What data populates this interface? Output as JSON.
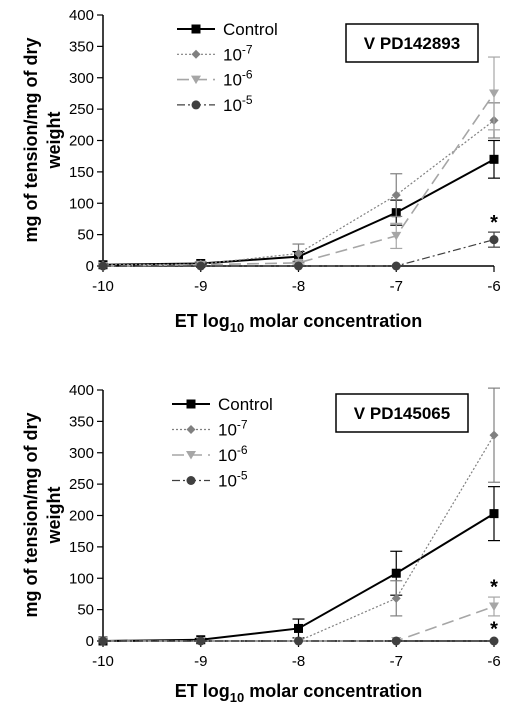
{
  "chart_data": [
    {
      "type": "line",
      "title": "",
      "box_label": "V PD142893",
      "xlabel": {
        "prefix": "ET log",
        "subscript": "10",
        "suffix": " molar concentration"
      },
      "ylabel": [
        "mg of tension/mg of dry",
        "weight"
      ],
      "x_ticks": [
        "-10",
        "-9",
        "-8",
        "-7",
        "-6"
      ],
      "y_ticks": [
        "0",
        "50",
        "100",
        "150",
        "200",
        "250",
        "300",
        "350",
        "400"
      ],
      "xlim": [
        -10,
        -6
      ],
      "ylim": [
        0,
        400
      ],
      "legend_placement": "top-left",
      "series": [
        {
          "name": "Control",
          "legend_base": "Control",
          "legend_exp": "",
          "marker": "square",
          "color": "#000000",
          "dash": "",
          "stroke_width": 2,
          "x": [
            -10,
            -9,
            -8,
            -7,
            -6
          ],
          "y": [
            2,
            4,
            15,
            85,
            170
          ],
          "err": [
            0,
            2,
            8,
            20,
            30
          ]
        },
        {
          "name": "10-7",
          "legend_base": "10",
          "legend_exp": "-7",
          "marker": "diamond",
          "color": "#808080",
          "dash": "2,2",
          "stroke_width": 1.2,
          "x": [
            -10,
            -9,
            -8,
            -7,
            -6
          ],
          "y": [
            2,
            3,
            20,
            113,
            232
          ],
          "err": [
            0,
            2,
            15,
            34,
            28
          ]
        },
        {
          "name": "10-6",
          "legend_base": "10",
          "legend_exp": "-6",
          "marker": "triangle-down",
          "color": "#a6a6a6",
          "dash": "12,6",
          "stroke_width": 1.6,
          "x": [
            -10,
            -9,
            -8,
            -7,
            -6
          ],
          "y": [
            0,
            2,
            5,
            48,
            275
          ],
          "err": [
            0,
            0,
            3,
            20,
            58
          ]
        },
        {
          "name": "10-5",
          "legend_base": "10",
          "legend_exp": "-5",
          "marker": "circle",
          "color": "#404040",
          "dash": "8,3,2,3",
          "stroke_width": 1.2,
          "x": [
            -10,
            -9,
            -8,
            -7,
            -6
          ],
          "y": [
            0,
            0,
            0,
            0,
            42
          ],
          "err": [
            0,
            0,
            0,
            0,
            12
          ]
        }
      ],
      "annotations": [
        {
          "text": "*",
          "x": -6,
          "y": 70
        }
      ]
    },
    {
      "type": "line",
      "title": "",
      "box_label": "V PD145065",
      "xlabel": {
        "prefix": "ET log",
        "subscript": "10",
        "suffix": " molar concentration"
      },
      "ylabel": [
        "mg of tension/mg of dry",
        "weight"
      ],
      "x_ticks": [
        "-10",
        "-9",
        "-8",
        "-7",
        "-6"
      ],
      "y_ticks": [
        "0",
        "50",
        "100",
        "150",
        "200",
        "250",
        "300",
        "350",
        "400"
      ],
      "xlim": [
        -10,
        -6
      ],
      "ylim": [
        0,
        400
      ],
      "legend_placement": "top-left",
      "series": [
        {
          "name": "Control",
          "legend_base": "Control",
          "legend_exp": "",
          "marker": "square",
          "color": "#000000",
          "dash": "",
          "stroke_width": 2,
          "x": [
            -10,
            -9,
            -8,
            -7,
            -6
          ],
          "y": [
            0,
            2,
            20,
            108,
            203
          ],
          "err": [
            0,
            2,
            15,
            35,
            43
          ]
        },
        {
          "name": "10-7",
          "legend_base": "10",
          "legend_exp": "-7",
          "marker": "diamond",
          "color": "#808080",
          "dash": "2,2",
          "stroke_width": 1.2,
          "x": [
            -10,
            -9,
            -8,
            -7,
            -6
          ],
          "y": [
            0,
            0,
            0,
            68,
            328
          ],
          "err": [
            0,
            0,
            0,
            28,
            75
          ]
        },
        {
          "name": "10-6",
          "legend_base": "10",
          "legend_exp": "-6",
          "marker": "triangle-down",
          "color": "#a6a6a6",
          "dash": "12,6",
          "stroke_width": 1.6,
          "x": [
            -10,
            -9,
            -8,
            -7,
            -6
          ],
          "y": [
            0,
            0,
            0,
            0,
            55
          ],
          "err": [
            0,
            0,
            0,
            0,
            15
          ]
        },
        {
          "name": "10-5",
          "legend_base": "10",
          "legend_exp": "-5",
          "marker": "circle",
          "color": "#404040",
          "dash": "8,3,2,3",
          "stroke_width": 1.2,
          "x": [
            -10,
            -9,
            -8,
            -7,
            -6
          ],
          "y": [
            0,
            0,
            0,
            0,
            0
          ],
          "err": [
            0,
            0,
            0,
            0,
            0
          ]
        }
      ],
      "annotations": [
        {
          "text": "*",
          "x": -6,
          "y": 87
        },
        {
          "text": "*",
          "x": -6,
          "y": 20
        }
      ]
    }
  ]
}
